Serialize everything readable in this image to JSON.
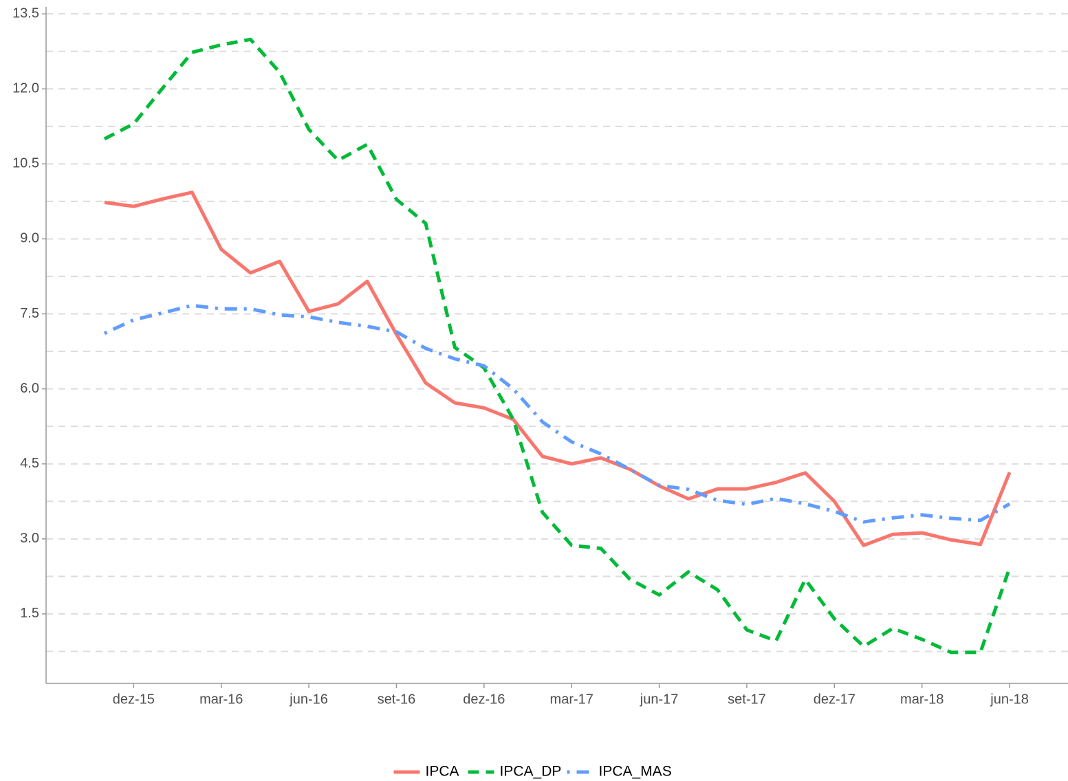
{
  "chart_data": {
    "type": "line",
    "x": [
      "2015-11",
      "2015-12",
      "2016-01",
      "2016-02",
      "2016-03",
      "2016-04",
      "2016-05",
      "2016-06",
      "2016-07",
      "2016-08",
      "2016-09",
      "2016-10",
      "2016-11",
      "2016-12",
      "2017-01",
      "2017-02",
      "2017-03",
      "2017-04",
      "2017-05",
      "2017-06",
      "2017-07",
      "2017-08",
      "2017-09",
      "2017-10",
      "2017-11",
      "2017-12",
      "2018-01",
      "2018-02",
      "2018-03",
      "2018-04",
      "2018-05",
      "2018-06"
    ],
    "series": [
      {
        "name": "IPCA",
        "color": "#F8766D",
        "linestyle": "solid",
        "values": [
          9.73,
          9.65,
          9.8,
          9.93,
          8.79,
          8.32,
          8.55,
          7.55,
          7.7,
          8.15,
          7.09,
          6.12,
          5.72,
          5.62,
          5.39,
          4.65,
          4.5,
          4.62,
          4.39,
          4.06,
          3.8,
          4.0,
          4.0,
          4.13,
          4.32,
          3.75,
          2.87,
          3.09,
          3.12,
          2.98,
          2.89,
          4.33
        ]
      },
      {
        "name": "IPCA_DP",
        "color": "#00BA38",
        "linestyle": "dashed",
        "values": [
          11.0,
          11.3,
          12.02,
          12.73,
          12.88,
          12.99,
          12.33,
          11.19,
          10.57,
          10.89,
          9.79,
          9.31,
          6.83,
          6.42,
          5.39,
          3.53,
          2.87,
          2.81,
          2.19,
          1.88,
          2.34,
          1.98,
          1.18,
          0.96,
          2.19,
          1.4,
          0.85,
          1.21,
          0.99,
          0.73,
          0.73,
          2.42
        ]
      },
      {
        "name": "IPCA_MAS",
        "color": "#619CFF",
        "linestyle": "dotdash",
        "values": [
          7.11,
          7.38,
          7.52,
          7.67,
          7.6,
          7.6,
          7.48,
          7.44,
          7.33,
          7.25,
          7.14,
          6.81,
          6.6,
          6.46,
          6.0,
          5.34,
          4.94,
          4.7,
          4.39,
          4.07,
          3.99,
          3.77,
          3.69,
          3.81,
          3.7,
          3.55,
          3.34,
          3.42,
          3.48,
          3.41,
          3.37,
          3.7
        ]
      }
    ],
    "xlim": [
      "2015-09",
      "2018-08"
    ],
    "xticks": [
      {
        "value": "2015-12",
        "label": "dez-15"
      },
      {
        "value": "2016-03",
        "label": "mar-16"
      },
      {
        "value": "2016-06",
        "label": "jun-16"
      },
      {
        "value": "2016-09",
        "label": "set-16"
      },
      {
        "value": "2016-12",
        "label": "dez-16"
      },
      {
        "value": "2017-03",
        "label": "mar-17"
      },
      {
        "value": "2017-06",
        "label": "jun-17"
      },
      {
        "value": "2017-09",
        "label": "set-17"
      },
      {
        "value": "2017-12",
        "label": "dez-17"
      },
      {
        "value": "2018-03",
        "label": "mar-18"
      },
      {
        "value": "2018-06",
        "label": "jun-18"
      }
    ],
    "ylim": [
      0.11,
      13.64
    ],
    "yticks": [
      1.5,
      {
        "value": 3,
        "label": "3.0"
      },
      4.5,
      {
        "value": 6,
        "label": "6.0"
      },
      7.5,
      {
        "value": 9,
        "label": "9.0"
      },
      10.5,
      {
        "value": 12,
        "label": "12.0"
      },
      13.5
    ],
    "yminor_ticks": [
      0.75,
      2.25,
      3.75,
      5.25,
      6.75,
      8.25,
      9.75,
      11.25,
      12.75
    ],
    "grid": true,
    "legend": "bottom"
  }
}
